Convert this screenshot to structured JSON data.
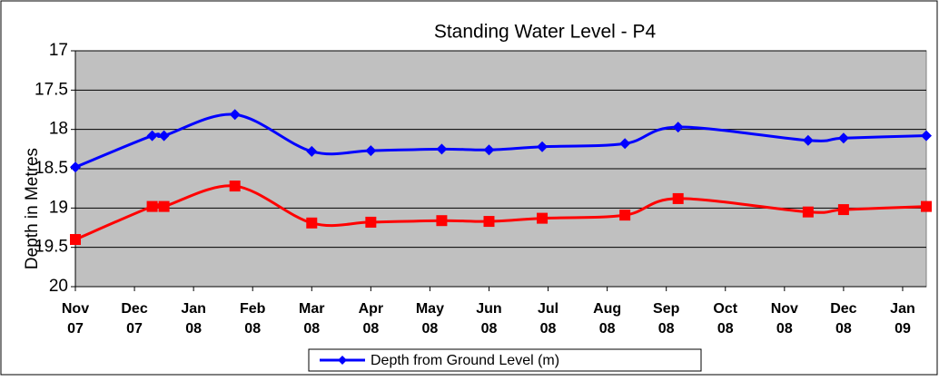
{
  "chart_data": {
    "type": "line",
    "title": "Standing Water Level - P4",
    "y_label": "Depth in Metres",
    "xlim": [
      0,
      14.4
    ],
    "xticks": [
      {
        "value": 0,
        "label": "Nov 07"
      },
      {
        "value": 1,
        "label": "Dec 07"
      },
      {
        "value": 2,
        "label": "Jan 08"
      },
      {
        "value": 3,
        "label": "Feb 08"
      },
      {
        "value": 4,
        "label": "Mar 08"
      },
      {
        "value": 5,
        "label": "Apr 08"
      },
      {
        "value": 6,
        "label": "May 08"
      },
      {
        "value": 7,
        "label": "Jun 08"
      },
      {
        "value": 8,
        "label": "Jul 08"
      },
      {
        "value": 9,
        "label": "Aug 08"
      },
      {
        "value": 10,
        "label": "Sep 08"
      },
      {
        "value": 11,
        "label": "Oct 08"
      },
      {
        "value": 12,
        "label": "Nov 08"
      },
      {
        "value": 13,
        "label": "Dec 08"
      },
      {
        "value": 14,
        "label": "Jan 09"
      }
    ],
    "x": [
      0,
      1.3,
      1.5,
      2.7,
      4.0,
      5.0,
      6.2,
      7.0,
      7.9,
      9.3,
      10.2,
      12.4,
      13.0,
      14.4
    ],
    "ylim": [
      17,
      20
    ],
    "y_inverted": true,
    "yticks": [
      17,
      17.5,
      18,
      18.5,
      19,
      19.5,
      20
    ],
    "grid": true,
    "legend": "bottom",
    "series": [
      {
        "name": "Depth from Ground Level (m)",
        "color": "#0000ff",
        "marker": "diamond",
        "values": [
          18.48,
          18.08,
          18.08,
          17.81,
          18.28,
          18.27,
          18.25,
          18.26,
          18.22,
          18.18,
          17.97,
          18.14,
          18.11,
          18.08
        ]
      },
      {
        "color": "#ff0000",
        "marker": "square",
        "values": [
          19.4,
          18.98,
          18.98,
          18.72,
          19.19,
          19.18,
          19.16,
          19.17,
          19.13,
          19.09,
          18.88,
          19.05,
          19.02,
          18.98
        ]
      }
    ]
  }
}
